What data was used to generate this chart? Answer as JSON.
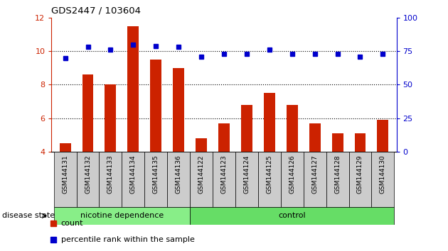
{
  "title": "GDS2447 / 103604",
  "categories": [
    "GSM144131",
    "GSM144132",
    "GSM144133",
    "GSM144134",
    "GSM144135",
    "GSM144136",
    "GSM144122",
    "GSM144123",
    "GSM144124",
    "GSM144125",
    "GSM144126",
    "GSM144127",
    "GSM144128",
    "GSM144129",
    "GSM144130"
  ],
  "bar_values": [
    4.5,
    8.6,
    8.0,
    11.5,
    9.5,
    9.0,
    4.8,
    5.7,
    6.8,
    7.5,
    6.8,
    5.7,
    5.1,
    5.1,
    5.9
  ],
  "dot_values_pct": [
    70,
    78,
    76,
    80,
    79,
    78,
    71,
    73,
    73,
    76,
    73,
    73,
    73,
    71,
    73
  ],
  "bar_color": "#cc2200",
  "dot_color": "#0000cc",
  "ylim_left": [
    4,
    12
  ],
  "ylim_right": [
    0,
    100
  ],
  "yticks_left": [
    4,
    6,
    8,
    10,
    12
  ],
  "yticks_right": [
    0,
    25,
    50,
    75,
    100
  ],
  "grid_yticks": [
    6,
    8,
    10
  ],
  "nicotine_count": 6,
  "control_count": 9,
  "group1_label": "nicotine dependence",
  "group2_label": "control",
  "disease_state_label": "disease state",
  "legend_bar_label": "count",
  "legend_dot_label": "percentile rank within the sample",
  "group1_color": "#88ee88",
  "group2_color": "#66dd66",
  "xtick_bg_color": "#cccccc",
  "tick_label_color_left": "#cc2200",
  "tick_label_color_right": "#0000cc",
  "bar_width": 0.5,
  "fig_width": 6.3,
  "fig_height": 3.54
}
